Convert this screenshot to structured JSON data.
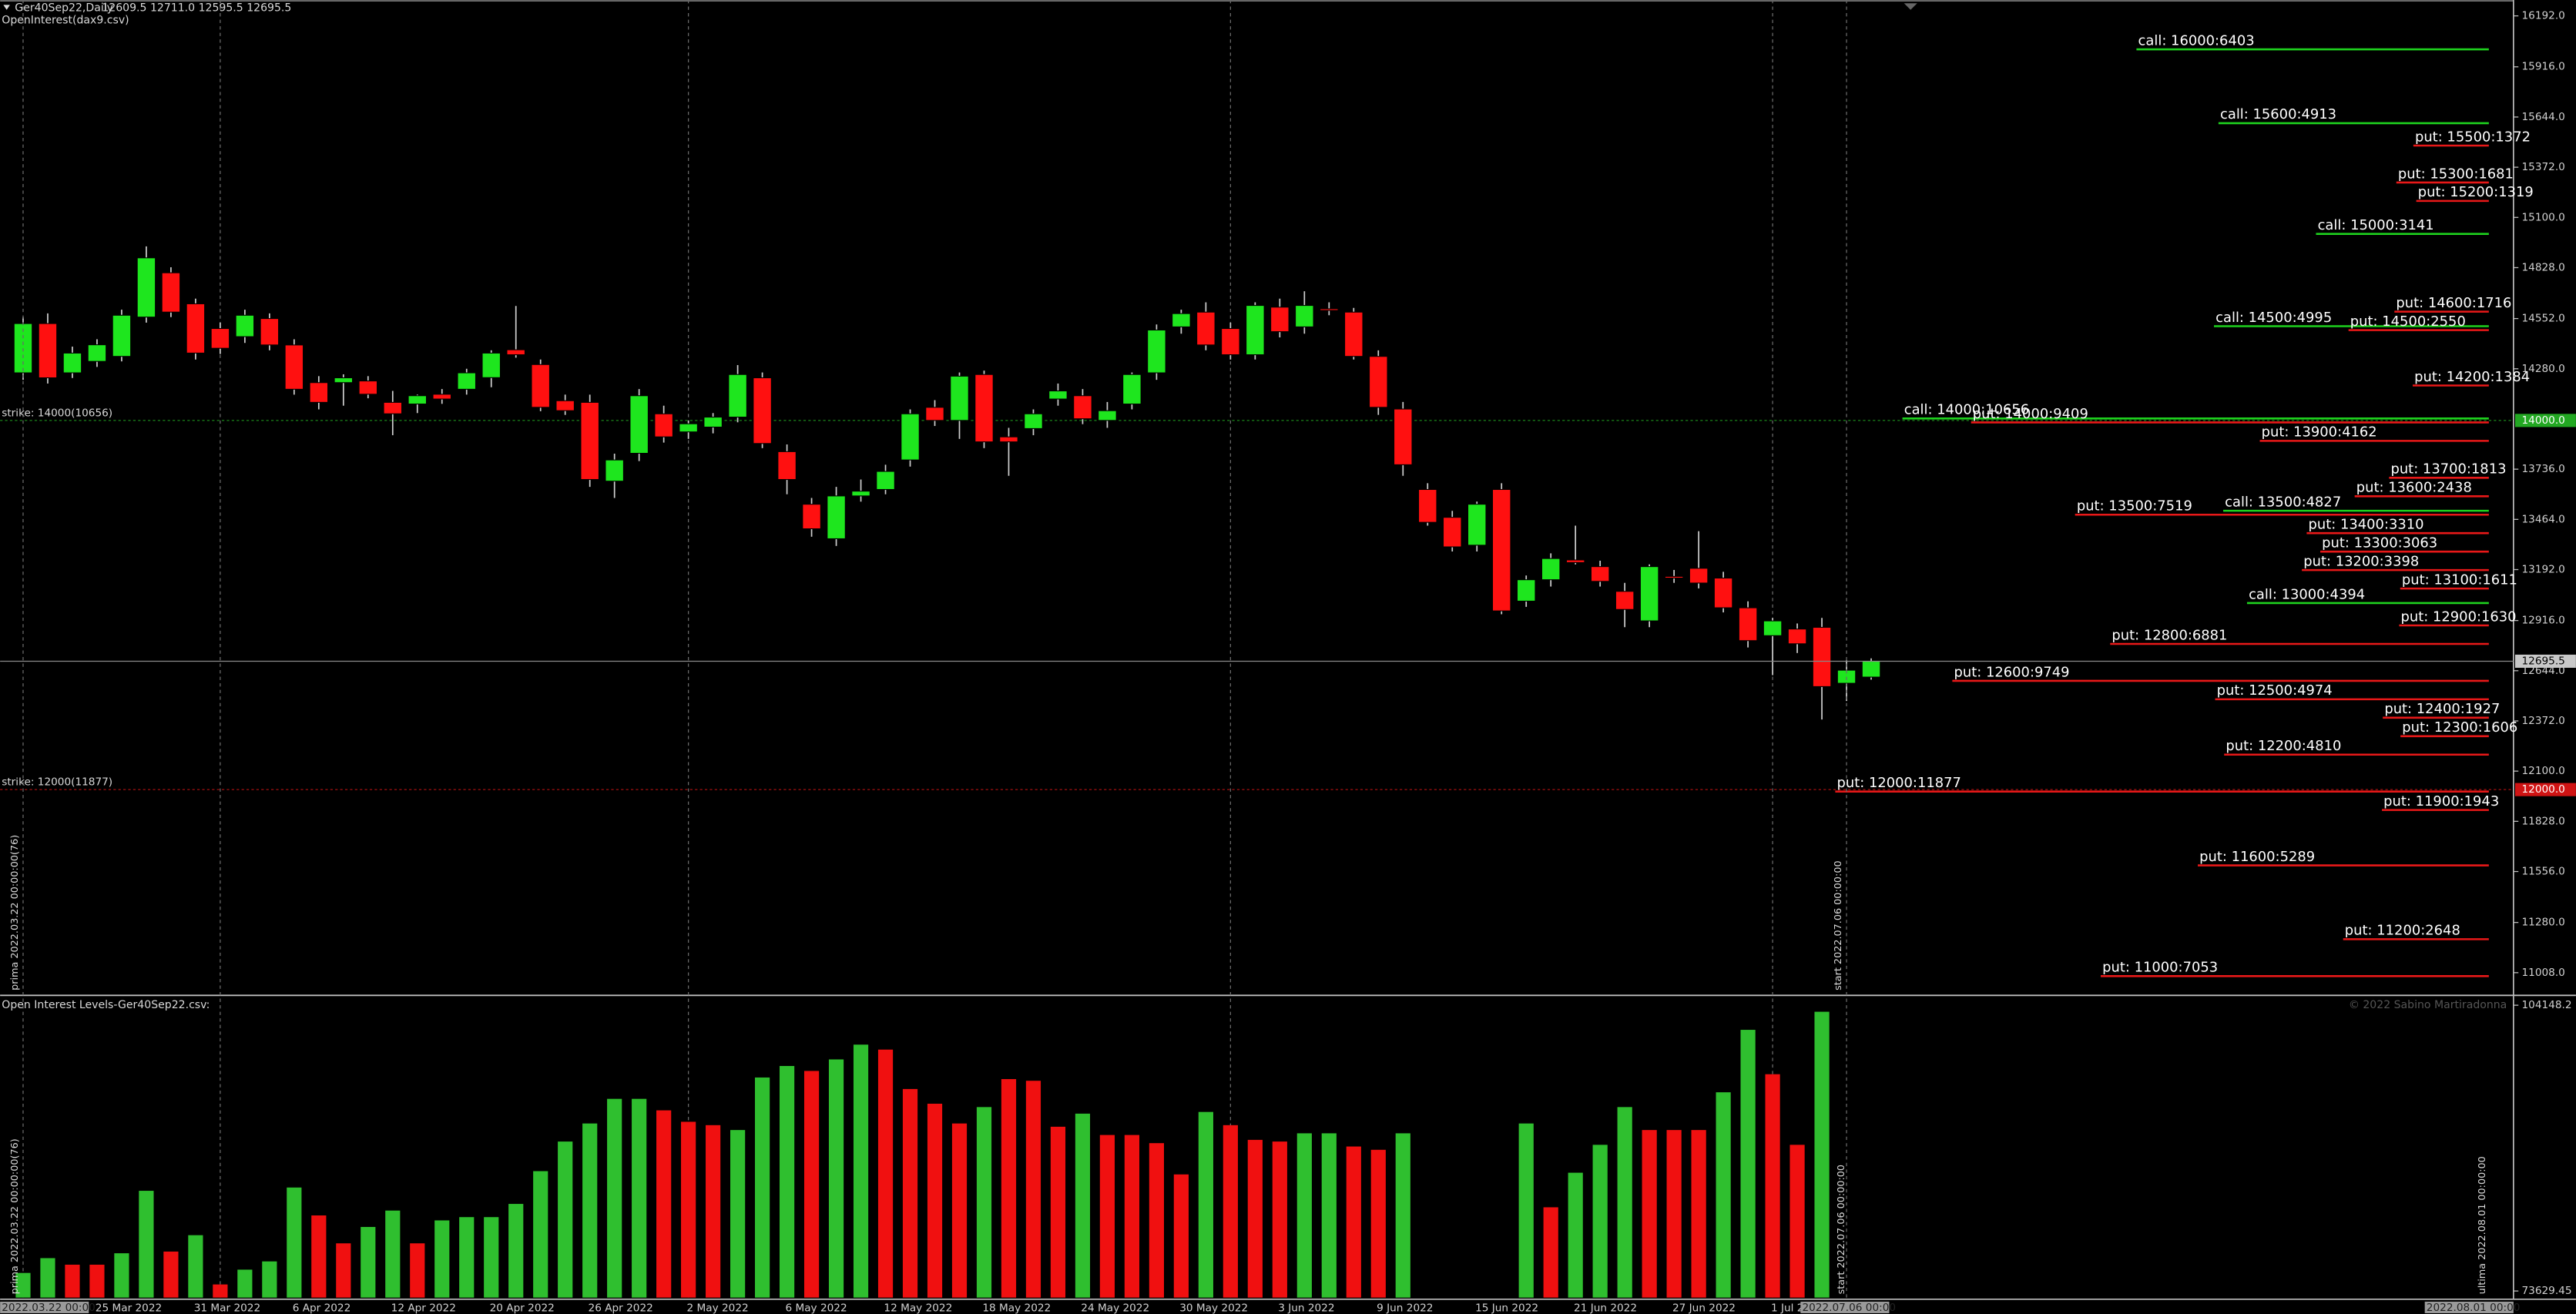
{
  "chart_data": [
    {
      "type": "candlestick",
      "title": "Ger40Sep22,Daily",
      "ohlc_text": "12609.5 12711.0 12595.5 12695.5",
      "subtitle": "OpenInterest(dax9.csv)",
      "categories": [
        null,
        null,
        null,
        "25 Mar 2022",
        null,
        null,
        null,
        "31 Mar 2022",
        null,
        null,
        null,
        "6 Apr 2022",
        null,
        null,
        null,
        "12 Apr 2022",
        null,
        null,
        null,
        "20 Apr 2022",
        null,
        null,
        null,
        "26 Apr 2022",
        null,
        null,
        null,
        "2 May 2022",
        null,
        null,
        null,
        "6 May 2022",
        null,
        null,
        null,
        "12 May 2022",
        null,
        null,
        null,
        "18 May 2022",
        null,
        null,
        null,
        "24 May 2022",
        null,
        null,
        null,
        "30 May 2022",
        null,
        null,
        null,
        "3 Jun 2022",
        null,
        null,
        null,
        "9 Jun 2022",
        null,
        null,
        null,
        "15 Jun 2022",
        null,
        null,
        null,
        "21 Jun 2022",
        null,
        null,
        null,
        "27 Jun 2022",
        null,
        null,
        null,
        "1 Jul 2022",
        null,
        null,
        null,
        null
      ],
      "open": [
        14258,
        14525,
        14258,
        14320,
        14347,
        14560,
        14800,
        14632,
        14498,
        14454,
        14552,
        14409,
        14205,
        14205,
        14214,
        14098,
        14089,
        14142,
        14169,
        14232,
        14383,
        14303,
        14107,
        14098,
        13671,
        13822,
        14036,
        13938,
        13964,
        14018,
        14231,
        13831,
        13546,
        13359,
        13591,
        13626,
        13786,
        14071,
        14000,
        14249,
        13911,
        13956,
        14116,
        14134,
        14000,
        14089,
        14258,
        14507,
        14587,
        14498,
        14356,
        14614,
        14507,
        14605,
        14587,
        14347,
        14062,
        13626,
        13475,
        13324,
        13626,
        13021,
        13137,
        13244,
        13208,
        13074,
        12914,
        13155,
        13199,
        13146,
        12985,
        12834,
        12870,
        12879,
        12576,
        12609.5
      ],
      "high": [
        14560,
        14580,
        14400,
        14440,
        14600,
        14943,
        14830,
        14660,
        14530,
        14600,
        14580,
        14440,
        14240,
        14250,
        14240,
        14160,
        14140,
        14170,
        14280,
        14380,
        14620,
        14330,
        14140,
        14140,
        13820,
        14170,
        14080,
        14000,
        14040,
        14300,
        14260,
        13870,
        13580,
        13640,
        13680,
        13760,
        14060,
        14110,
        14260,
        14270,
        13960,
        14060,
        14200,
        14170,
        14100,
        14260,
        14520,
        14600,
        14640,
        14530,
        14640,
        14660,
        14700,
        14640,
        14610,
        14380,
        14100,
        13660,
        13510,
        13560,
        13660,
        13160,
        13280,
        13430,
        13240,
        13120,
        13220,
        13190,
        13400,
        13180,
        13020,
        12930,
        12900,
        12930,
        12700,
        12711
      ],
      "low": [
        14220,
        14200,
        14230,
        14290,
        14320,
        14530,
        14560,
        14330,
        14360,
        14420,
        14380,
        14140,
        14060,
        14080,
        14120,
        13920,
        14040,
        14090,
        14140,
        14180,
        14340,
        14050,
        14030,
        13640,
        13580,
        13780,
        13880,
        13900,
        13930,
        13990,
        13850,
        13600,
        13370,
        13320,
        13560,
        13600,
        13750,
        13970,
        13900,
        13850,
        13700,
        13920,
        14080,
        13980,
        13960,
        14060,
        14220,
        14470,
        14380,
        14330,
        14330,
        14450,
        14470,
        14570,
        14330,
        14030,
        13700,
        13430,
        13290,
        13290,
        12950,
        12990,
        13100,
        13220,
        13100,
        12880,
        12880,
        13120,
        13090,
        12960,
        12770,
        12620,
        12740,
        12380,
        12480,
        12595.5
      ],
      "close": [
        14525,
        14231,
        14365,
        14410,
        14570,
        14881,
        14587,
        14365,
        14391,
        14570,
        14409,
        14169,
        14098,
        14231,
        14142,
        14036,
        14134,
        14116,
        14258,
        14365,
        14356,
        14071,
        14053,
        13680,
        13786,
        14134,
        13911,
        13982,
        14018,
        14249,
        13875,
        13680,
        13413,
        13591,
        13617,
        13724,
        14036,
        14000,
        14240,
        13884,
        13884,
        14036,
        14160,
        14009,
        14053,
        14249,
        14490,
        14579,
        14409,
        14356,
        14623,
        14481,
        14623,
        14596,
        14347,
        14071,
        13760,
        13448,
        13315,
        13546,
        12968,
        13137,
        13252,
        13230,
        13128,
        12976,
        13208,
        13146,
        13119,
        12985,
        12807,
        12914,
        12790,
        12558,
        12647,
        12695.5
      ],
      "up_color": "#1ee61e",
      "down_color": "#ff1010",
      "ylim": [
        10894,
        16278
      ],
      "yticks": [
        {
          "value": 16192,
          "label": "16192.0"
        },
        {
          "value": 15916,
          "label": "15916.0"
        },
        {
          "value": 15644,
          "label": "15644.0"
        },
        {
          "value": 15372,
          "label": "15372.0"
        },
        {
          "value": 15100,
          "label": "15100.0"
        },
        {
          "value": 14828,
          "label": "14828.0"
        },
        {
          "value": 14552,
          "label": "14552.0"
        },
        {
          "value": 14280,
          "label": "14280.0"
        },
        {
          "value": 13736,
          "label": "13736.0"
        },
        {
          "value": 13464,
          "label": "13464.0"
        },
        {
          "value": 13192,
          "label": "13192.0"
        },
        {
          "value": 12916,
          "label": "12916.0"
        },
        {
          "value": 12644,
          "label": "12644.0"
        },
        {
          "value": 12372,
          "label": "12372.0"
        },
        {
          "value": 12100,
          "label": "12100.0"
        },
        {
          "value": 11828,
          "label": "11828.0"
        },
        {
          "value": 11556,
          "label": "11556.0"
        },
        {
          "value": 11280,
          "label": "11280.0"
        },
        {
          "value": 11008,
          "label": "11008.0"
        }
      ],
      "strike_lines": [
        {
          "label": "strike: 14000(10656)",
          "value": 14000,
          "tag": "14000.0",
          "color": "#22a822"
        },
        {
          "label": "strike: 12000(11877)",
          "value": 12000,
          "tag": "12000.0",
          "color": "#d01414"
        }
      ],
      "call_color": "#1ed21e",
      "put_color": "#e81818",
      "calls": [
        {
          "label": "call: 16000:6403",
          "strike": 16000,
          "count": 6403
        },
        {
          "label": "call: 15600:4913",
          "strike": 15600,
          "count": 4913
        },
        {
          "label": "call: 15000:3141",
          "strike": 15000,
          "count": 3141
        },
        {
          "label": "call: 14500:4995",
          "strike": 14500,
          "count": 4995
        },
        {
          "label": "call: 14000:10656",
          "strike": 14000,
          "count": 10656
        },
        {
          "label": "call: 13500:4827",
          "strike": 13500,
          "count": 4827
        },
        {
          "label": "call: 13000:4394",
          "strike": 13000,
          "count": 4394
        }
      ],
      "puts": [
        {
          "label": "put: 15500:1372",
          "strike": 15500,
          "count": 1372
        },
        {
          "label": "put: 15300:1681",
          "strike": 15300,
          "count": 1681
        },
        {
          "label": "put: 15200:1319",
          "strike": 15200,
          "count": 1319
        },
        {
          "label": "put: 14600:1716",
          "strike": 14600,
          "count": 1716
        },
        {
          "label": "put: 14500:2550",
          "strike": 14500,
          "count": 2550
        },
        {
          "label": "put: 14200:1384",
          "strike": 14200,
          "count": 1384
        },
        {
          "label": "put: 14000:9409",
          "strike": 14000,
          "count": 9409
        },
        {
          "label": "put: 13900:4162",
          "strike": 13900,
          "count": 4162
        },
        {
          "label": "put: 13700:1813",
          "strike": 13700,
          "count": 1813
        },
        {
          "label": "put: 13600:2438",
          "strike": 13600,
          "count": 2438
        },
        {
          "label": "put: 13500:7519",
          "strike": 13500,
          "count": 7519
        },
        {
          "label": "put: 13400:3310",
          "strike": 13400,
          "count": 3310
        },
        {
          "label": "put: 13300:3063",
          "strike": 13300,
          "count": 3063
        },
        {
          "label": "put: 13200:3398",
          "strike": 13200,
          "count": 3398
        },
        {
          "label": "put: 13100:1611",
          "strike": 13100,
          "count": 1611
        },
        {
          "label": "put: 12900:1630",
          "strike": 12900,
          "count": 1630
        },
        {
          "label": "put: 12800:6881",
          "strike": 12800,
          "count": 6881
        },
        {
          "label": "put: 12600:9749",
          "strike": 12600,
          "count": 9749
        },
        {
          "label": "put: 12500:4974",
          "strike": 12500,
          "count": 4974
        },
        {
          "label": "put: 12400:1927",
          "strike": 12400,
          "count": 1927
        },
        {
          "label": "put: 12300:1606",
          "strike": 12300,
          "count": 1606
        },
        {
          "label": "put: 12200:4810",
          "strike": 12200,
          "count": 4810
        },
        {
          "label": "put: 12000:11877",
          "strike": 12000,
          "count": 11877
        },
        {
          "label": "put: 11900:1943",
          "strike": 11900,
          "count": 1943
        },
        {
          "label": "put: 11600:5289",
          "strike": 11600,
          "count": 5289
        },
        {
          "label": "put: 11200:2648",
          "strike": 11200,
          "count": 2648
        },
        {
          "label": "put: 11000:7053",
          "strike": 11000,
          "count": 7053
        }
      ],
      "markers": [
        {
          "label": "prima 2022.03.22 00:00:00(76)",
          "tag": "2022.03.22 00:00"
        },
        {
          "label": "start 2022.07.06 00:00:00",
          "tag": "2022.07.06 00:00"
        }
      ],
      "end_tag": "2022.08.01 00:00"
    },
    {
      "type": "bar",
      "title": "Open Interest Levels-Ger40Sep22.csv:",
      "copyright": "© 2022 Sabino Martiradonna",
      "values": [
        75560,
        77140,
        76440,
        76440,
        77660,
        84330,
        77840,
        79590,
        74330,
        75910,
        76790,
        84680,
        81700,
        78720,
        80470,
        82220,
        78720,
        81170,
        81520,
        81520,
        82930,
        86430,
        89590,
        91520,
        94150,
        94150,
        92920,
        91700,
        91340,
        90820,
        96430,
        97660,
        97130,
        98360,
        99940,
        99410,
        95200,
        93630,
        91520,
        93270,
        96260,
        96080,
        91170,
        92570,
        90290,
        90290,
        89420,
        86080,
        92750,
        91340,
        89770,
        89590,
        90470,
        90470,
        89060,
        88710,
        90470,
        null,
        null,
        null,
        null,
        91520,
        82570,
        86260,
        89240,
        93270,
        90820,
        90820,
        90820,
        94850,
        101520,
        96780,
        89240,
        103450,
        null,
        null
      ],
      "bar_colors": [
        "#2fbf2f",
        "#2fbf2f",
        "#f01010",
        "#f01010",
        "#2fbf2f",
        "#2fbf2f",
        "#f01010",
        "#2fbf2f",
        "#f01010",
        "#2fbf2f",
        "#2fbf2f",
        "#2fbf2f",
        "#f01010",
        "#f01010",
        "#2fbf2f",
        "#2fbf2f",
        "#f01010",
        "#2fbf2f",
        "#2fbf2f",
        "#2fbf2f",
        "#2fbf2f",
        "#2fbf2f",
        "#2fbf2f",
        "#2fbf2f",
        "#2fbf2f",
        "#2fbf2f",
        "#f01010",
        "#f01010",
        "#f01010",
        "#2fbf2f",
        "#2fbf2f",
        "#2fbf2f",
        "#f01010",
        "#2fbf2f",
        "#2fbf2f",
        "#f01010",
        "#f01010",
        "#f01010",
        "#f01010",
        "#2fbf2f",
        "#f01010",
        "#f01010",
        "#f01010",
        "#2fbf2f",
        "#f01010",
        "#f01010",
        "#f01010",
        "#f01010",
        "#2fbf2f",
        "#f01010",
        "#f01010",
        "#f01010",
        "#2fbf2f",
        "#2fbf2f",
        "#f01010",
        "#f01010",
        "#2fbf2f",
        null,
        null,
        null,
        null,
        "#2fbf2f",
        "#f01010",
        "#2fbf2f",
        "#2fbf2f",
        "#2fbf2f",
        "#f01010",
        "#f01010",
        "#f01010",
        "#2fbf2f",
        "#2fbf2f",
        "#f01010",
        "#f01010",
        "#2fbf2f",
        null,
        null
      ],
      "ylim": [
        72928,
        105026
      ],
      "yticks": [
        104148.2,
        73629.45
      ],
      "markers": [
        {
          "label": "prima 2022.03.22 00:00:00(76)"
        },
        {
          "label": "start 2022.07.06 00:00:00"
        },
        {
          "label": "ultima 2022.08.01 00:00:00"
        }
      ]
    }
  ]
}
